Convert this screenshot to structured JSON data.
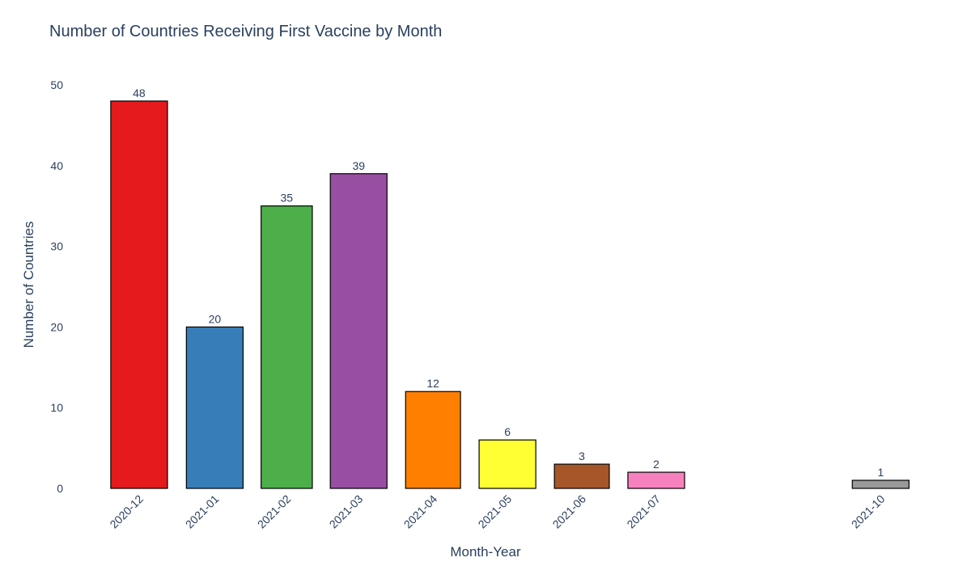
{
  "chart_data": {
    "type": "bar",
    "title": "Number of Countries Receiving First Vaccine by Month",
    "xlabel": "Month-Year",
    "ylabel": "Number of Countries",
    "x_axis_type": "date-monthly",
    "x_range": [
      "2020-11-16",
      "2021-10-27"
    ],
    "categories": [
      "2020-12",
      "2021-01",
      "2021-02",
      "2021-03",
      "2021-04",
      "2021-05",
      "2021-06",
      "2021-07",
      "2021-10"
    ],
    "values": [
      48,
      20,
      35,
      39,
      12,
      6,
      3,
      2,
      1
    ],
    "colors": [
      "#e41a1c",
      "#377eb8",
      "#4daf4a",
      "#984ea3",
      "#ff7f00",
      "#ffff33",
      "#a65628",
      "#f781bf",
      "#999999"
    ],
    "bar_outline_color": "#000000",
    "ylim": [
      0,
      50
    ],
    "yticks": [
      0,
      10,
      20,
      30,
      40,
      50
    ],
    "grid": false,
    "legend": "none",
    "tick_label_rotation": -45
  }
}
